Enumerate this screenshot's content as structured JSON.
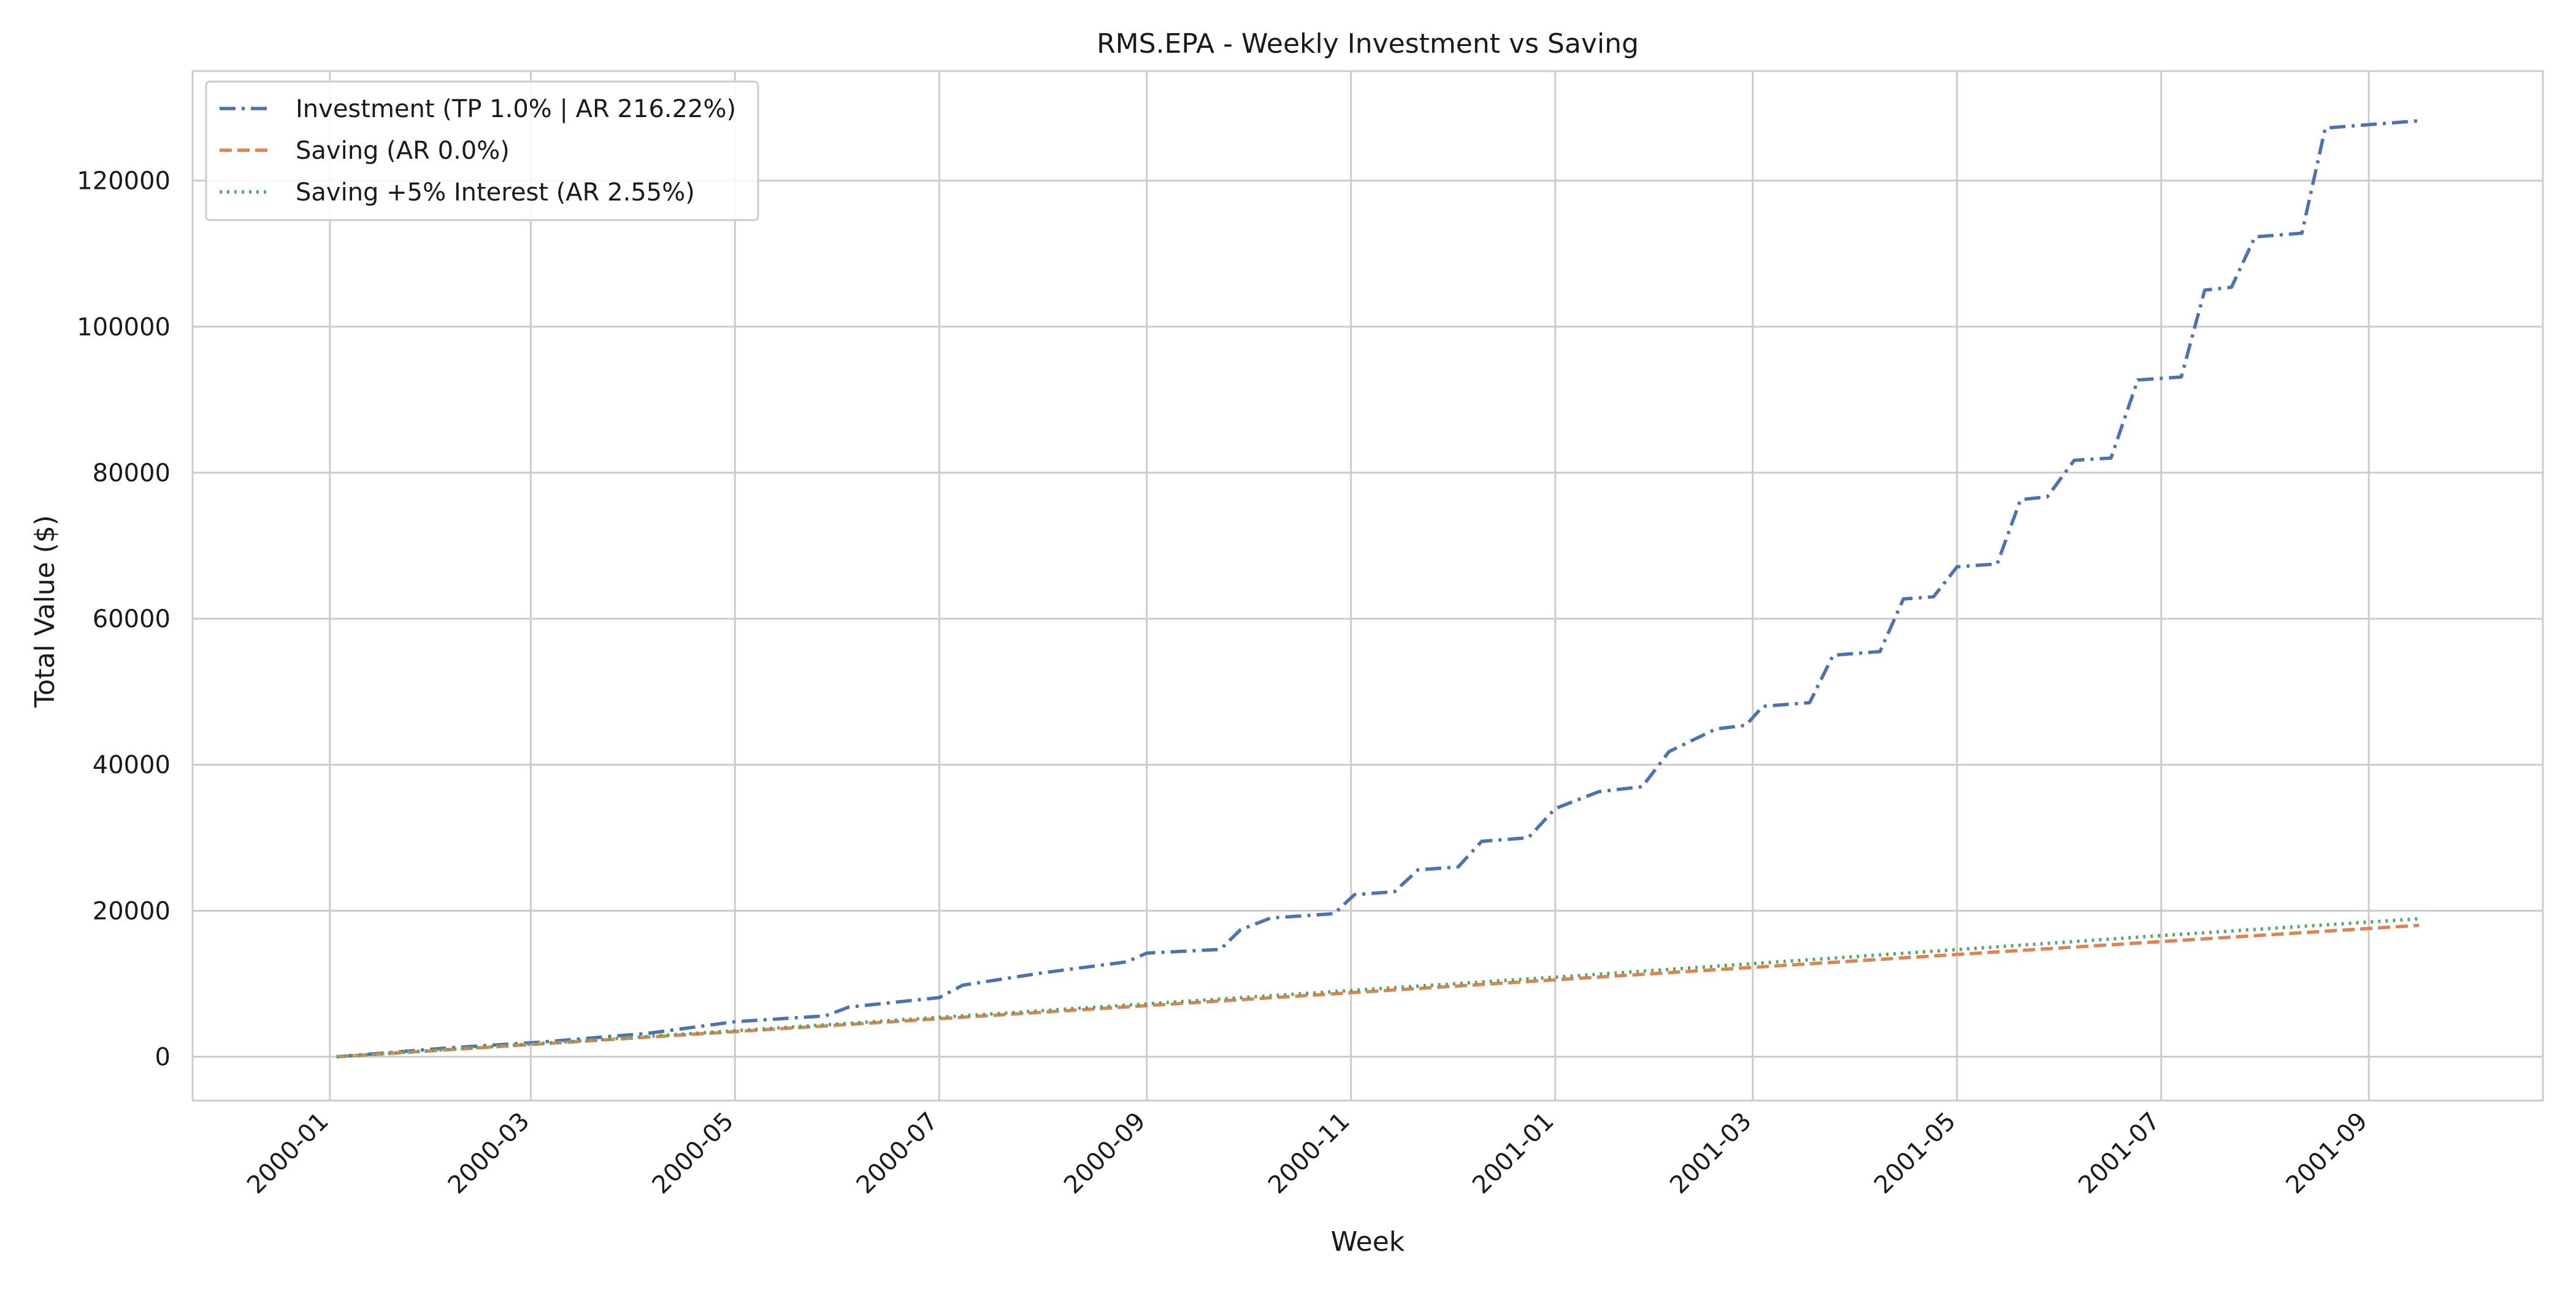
{
  "chart_data": {
    "type": "line",
    "title": "RMS.EPA - Weekly Investment vs Saving",
    "xlabel": "Week",
    "ylabel": "Total Value ($)",
    "xlim": [
      "1999-11-21",
      "2001-10-23"
    ],
    "ylim": [
      -6000,
      135000
    ],
    "grid": true,
    "legend_position": "upper left",
    "x_ticks": [
      "2000-01",
      "2000-03",
      "2000-05",
      "2000-07",
      "2000-09",
      "2000-11",
      "2001-01",
      "2001-03",
      "2001-05",
      "2001-07",
      "2001-09"
    ],
    "y_ticks": [
      0,
      20000,
      40000,
      60000,
      80000,
      100000,
      120000
    ],
    "series": [
      {
        "name": "Investment (TP 1.0% | AR 216.22%)",
        "color": "#4c72b0",
        "style": "dashdot",
        "points": [
          [
            "2000-01-03",
            0
          ],
          [
            "2000-02-05",
            1200
          ],
          [
            "2000-03-04",
            2000
          ],
          [
            "2000-04-05",
            3200
          ],
          [
            "2000-05-01",
            4800
          ],
          [
            "2000-05-28",
            5600
          ],
          [
            "2000-06-04",
            6800
          ],
          [
            "2000-07-01",
            8100
          ],
          [
            "2000-07-08",
            9800
          ],
          [
            "2000-08-01",
            11500
          ],
          [
            "2000-08-26",
            13000
          ],
          [
            "2000-09-01",
            14200
          ],
          [
            "2000-09-23",
            14700
          ],
          [
            "2000-09-29",
            17400
          ],
          [
            "2000-10-08",
            19000
          ],
          [
            "2000-10-27",
            19600
          ],
          [
            "2000-11-02",
            22200
          ],
          [
            "2000-11-14",
            22600
          ],
          [
            "2000-11-21",
            25600
          ],
          [
            "2000-12-03",
            26000
          ],
          [
            "2000-12-10",
            29500
          ],
          [
            "2000-12-24",
            30000
          ],
          [
            "2001-01-01",
            34000
          ],
          [
            "2001-01-14",
            36300
          ],
          [
            "2001-01-27",
            37000
          ],
          [
            "2001-02-04",
            41800
          ],
          [
            "2001-02-18",
            44900
          ],
          [
            "2001-02-27",
            45400
          ],
          [
            "2001-03-04",
            48000
          ],
          [
            "2001-03-18",
            48500
          ],
          [
            "2001-03-25",
            55000
          ],
          [
            "2001-04-08",
            55500
          ],
          [
            "2001-04-15",
            62700
          ],
          [
            "2001-04-24",
            63000
          ],
          [
            "2001-05-01",
            67100
          ],
          [
            "2001-05-13",
            67500
          ],
          [
            "2001-05-20",
            76300
          ],
          [
            "2001-05-28",
            76700
          ],
          [
            "2001-06-05",
            81700
          ],
          [
            "2001-06-16",
            82000
          ],
          [
            "2001-06-24",
            92700
          ],
          [
            "2001-07-07",
            93100
          ],
          [
            "2001-07-14",
            105000
          ],
          [
            "2001-07-22",
            105400
          ],
          [
            "2001-07-29",
            112300
          ],
          [
            "2001-08-12",
            112800
          ],
          [
            "2001-08-19",
            127200
          ],
          [
            "2001-09-02",
            127700
          ],
          [
            "2001-09-16",
            128200
          ]
        ]
      },
      {
        "name": "Saving (AR 0.0%)",
        "color": "#dd8452",
        "style": "dashed",
        "points": [
          [
            "2000-01-03",
            0
          ],
          [
            "2001-09-16",
            18000
          ]
        ]
      },
      {
        "name": "Saving +5% Interest (AR 2.55%)",
        "color": "#55a868",
        "style": "dotted",
        "points": [
          [
            "2000-01-03",
            0
          ],
          [
            "2000-07-01",
            5400
          ],
          [
            "2001-01-01",
            10900
          ],
          [
            "2001-07-01",
            16600
          ],
          [
            "2001-09-16",
            18900
          ]
        ]
      }
    ]
  }
}
